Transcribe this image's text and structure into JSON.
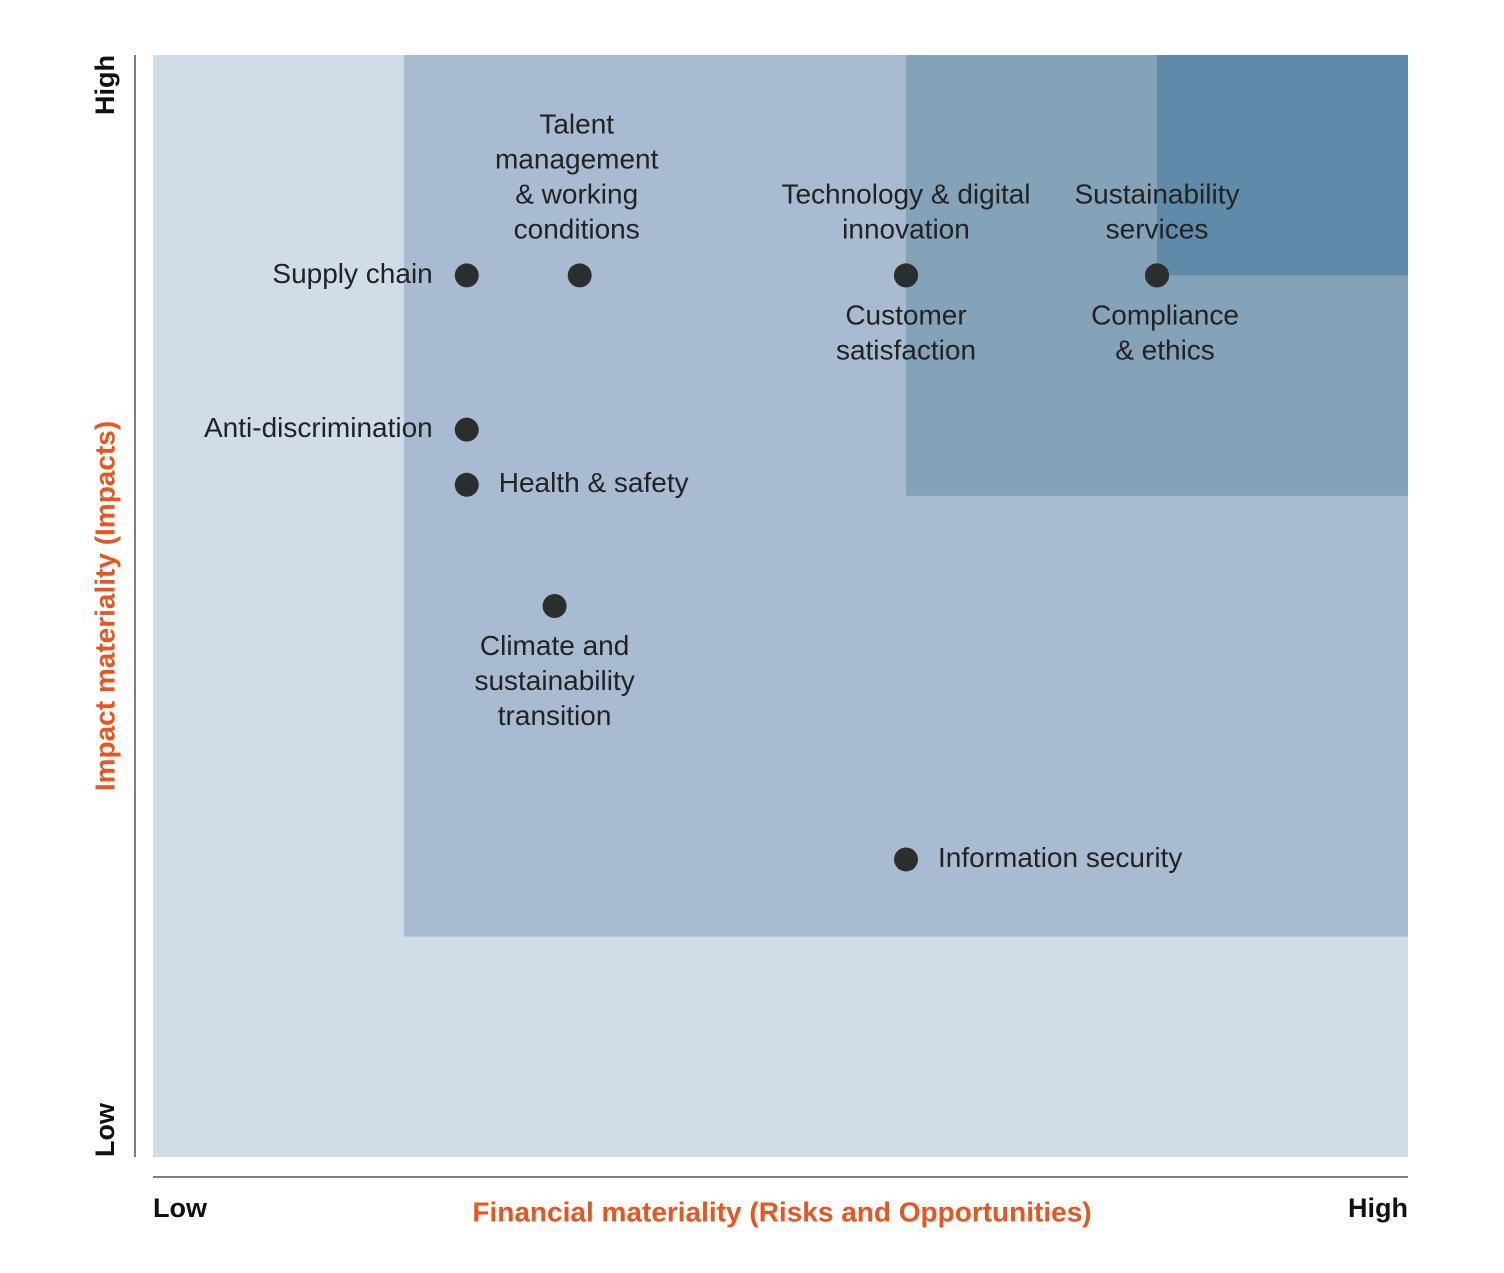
{
  "chart_data": {
    "type": "scatter",
    "x_label": "Financial materiality (Risks and Opportunities)",
    "y_label": "Impact materiality (Impacts)",
    "xlim": [
      0,
      100
    ],
    "ylim": [
      0,
      100
    ],
    "xticks": [
      {
        "value": 0,
        "label": "Low"
      },
      {
        "value": 100,
        "label": "High"
      }
    ],
    "yticks": [
      {
        "value": 0,
        "label": "Low"
      },
      {
        "value": 100,
        "label": "High"
      }
    ],
    "background": "#d0dce7",
    "zones": [
      {
        "x0": 20,
        "y0": 20,
        "color": "#a9bbd0"
      },
      {
        "x0": 60,
        "y0": 60,
        "color": "#84a2b8"
      },
      {
        "x0": 80,
        "y0": 80,
        "color": "#5f8aa8"
      }
    ],
    "color": "#2b2e2e",
    "points": [
      {
        "label": "Supply chain",
        "x": 25,
        "y": 80
      },
      {
        "label": "Talent management & working conditions",
        "x": 34,
        "y": 80
      },
      {
        "label": "Technology & digital innovation",
        "x": 60,
        "y": 80
      },
      {
        "label": "Customer satisfaction",
        "x": 60,
        "y": 80
      },
      {
        "label": "Sustainability services",
        "x": 80,
        "y": 80
      },
      {
        "label": "Compliance & ethics",
        "x": 80,
        "y": 80
      },
      {
        "label": "Anti-discrimination",
        "x": 25,
        "y": 66
      },
      {
        "label": "Health & safety",
        "x": 25,
        "y": 61
      },
      {
        "label": "Climate and sustainability transition",
        "x": 32,
        "y": 50
      },
      {
        "label": "Information security",
        "x": 60,
        "y": 27
      }
    ]
  }
}
